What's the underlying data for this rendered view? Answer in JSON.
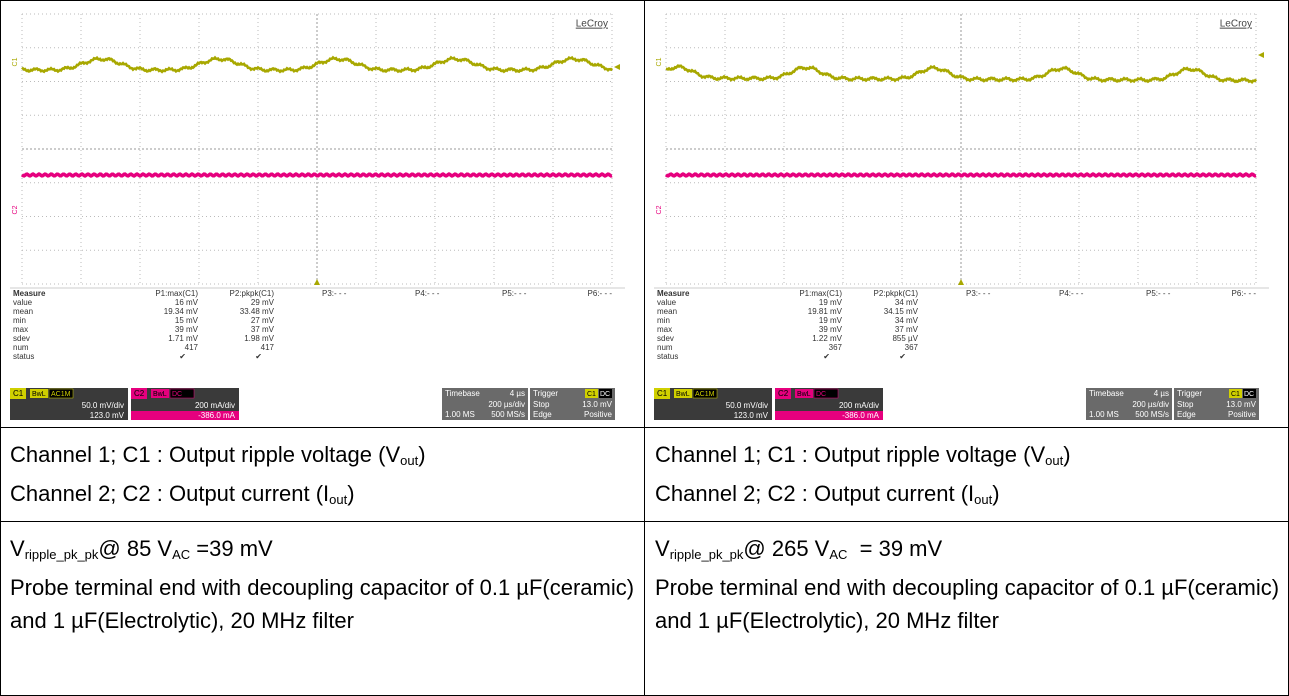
{
  "scopes": [
    {
      "brand": "LeCroy",
      "trace_labels": [
        "C1",
        "C2"
      ],
      "measure": {
        "header": [
          "Measure",
          "P1:max(C1)",
          "P2:pkpk(C1)",
          "P3:- - -",
          "P4:- - -",
          "P5:- - -",
          "P6:- - -"
        ],
        "rows": [
          [
            "value",
            "16 mV",
            "29 mV"
          ],
          [
            "mean",
            "19.34 mV",
            "33.48 mV"
          ],
          [
            "min",
            "15 mV",
            "27 mV"
          ],
          [
            "max",
            "39 mV",
            "37 mV"
          ],
          [
            "sdev",
            "1.71 mV",
            "1.98 mV"
          ],
          [
            "num",
            "417",
            "417"
          ],
          [
            "status",
            "✔",
            "✔"
          ]
        ]
      },
      "ch1": {
        "tag": "C1",
        "bw": "BwL",
        "coupling": "AC1M",
        "scale": "50.0 mV/div",
        "offset": "123.0 mV"
      },
      "ch2": {
        "tag": "C2",
        "bw": "BwL",
        "coupling": "DC",
        "scale": "200 mA/div",
        "offset": "-386.0 mA"
      },
      "timebase": {
        "label": "Timebase",
        "delay": "4 µs",
        "scale": "200 µs/div",
        "samples": "1.00 MS",
        "rate": "500 MS/s"
      },
      "trigger": {
        "label": "Trigger",
        "source": "C1",
        "coupling": "DC",
        "mode": "Stop",
        "level": "13.0 mV",
        "type": "Edge",
        "slope": "Positive"
      }
    },
    {
      "brand": "LeCroy",
      "trace_labels": [
        "C1",
        "C2"
      ],
      "measure": {
        "header": [
          "Measure",
          "P1:max(C1)",
          "P2:pkpk(C1)",
          "P3:- - -",
          "P4:- - -",
          "P5:- - -",
          "P6:- - -"
        ],
        "rows": [
          [
            "value",
            "19 mV",
            "34 mV"
          ],
          [
            "mean",
            "19.81 mV",
            "34.15 mV"
          ],
          [
            "min",
            "19 mV",
            "34 mV"
          ],
          [
            "max",
            "39 mV",
            "37 mV"
          ],
          [
            "sdev",
            "1.22 mV",
            "855 µV"
          ],
          [
            "num",
            "367",
            "367"
          ],
          [
            "status",
            "✔",
            "✔"
          ]
        ]
      },
      "ch1": {
        "tag": "C1",
        "bw": "BwL",
        "coupling": "AC1M",
        "scale": "50.0 mV/div",
        "offset": "123.0 mV"
      },
      "ch2": {
        "tag": "C2",
        "bw": "BwL",
        "coupling": "DC",
        "scale": "200 mA/div",
        "offset": "-386.0 mA"
      },
      "timebase": {
        "label": "Timebase",
        "delay": "4 µs",
        "scale": "200 µs/div",
        "samples": "1.00 MS",
        "rate": "500 MS/s"
      },
      "trigger": {
        "label": "Trigger",
        "source": "C1",
        "coupling": "DC",
        "mode": "Stop",
        "level": "13.0 mV",
        "type": "Edge",
        "slope": "Positive"
      }
    }
  ],
  "captions": [
    {
      "line1": {
        "pre": "Channel 1; C1 : Output ripple voltage (V",
        "sub": "out",
        "post": ")"
      },
      "line2": {
        "pre": "Channel 2; C2 : Output current (I",
        "sub": "out",
        "post": ")"
      }
    },
    {
      "line1": {
        "pre": "Channel 1; C1 : Output ripple voltage (V",
        "sub": "out",
        "post": ")"
      },
      "line2": {
        "pre": "Channel 2; C2 : Output current (I",
        "sub": "out",
        "post": ")"
      }
    }
  ],
  "notes": [
    {
      "line1": {
        "v": "V",
        "sub1": "ripple_pk_pk",
        "mid": "@ 85 V",
        "sub2": "AC",
        "post": " =39 mV"
      },
      "line2": "Probe terminal end with decoupling capacitor of 0.1 µF(ceramic) and 1 µF(Electrolytic), 20 MHz filter"
    },
    {
      "line1": {
        "v": "V",
        "sub1": "ripple_pk_pk",
        "mid": "@ 265 V",
        "sub2": "AC",
        "post": "  = 39 mV"
      },
      "line2": "Probe terminal end with decoupling capacitor of 0.1 µF(ceramic) and 1 µF(Electrolytic), 20 MHz filter"
    }
  ]
}
